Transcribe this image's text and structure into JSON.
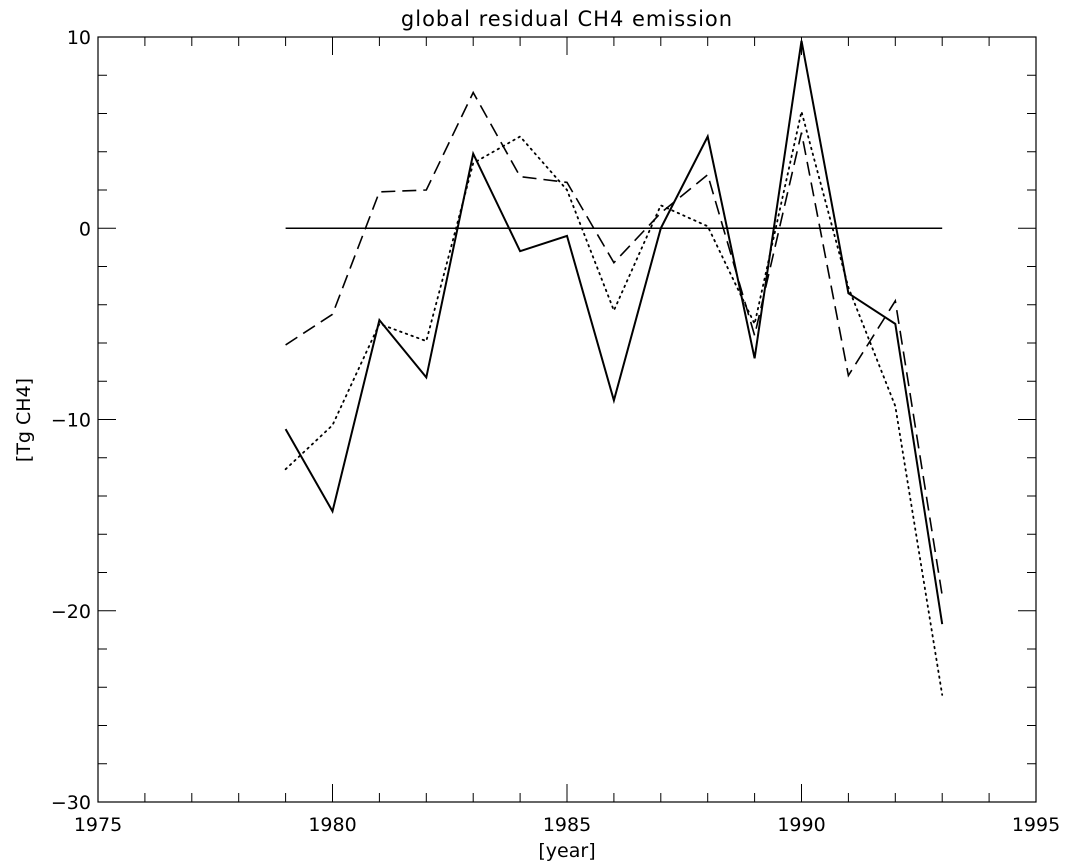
{
  "chart_data": {
    "type": "line",
    "title": "global residual CH4 emission",
    "xlabel": "[year]",
    "ylabel": "[Tg CH4]",
    "xlim": [
      1975,
      1995
    ],
    "ylim": [
      -30,
      10
    ],
    "x_ticks": [
      1975,
      1980,
      1985,
      1990,
      1995
    ],
    "y_ticks": [
      -30,
      -20,
      -10,
      0,
      10
    ],
    "x_tick_labels": [
      "1975",
      "1980",
      "1985",
      "1990",
      "1995"
    ],
    "y_tick_labels": [
      "−30",
      "−20",
      "−10",
      "0",
      "10"
    ],
    "x": [
      1979,
      1980,
      1981,
      1982,
      1983,
      1984,
      1985,
      1986,
      1987,
      1988,
      1989,
      1990,
      1991,
      1992,
      1993
    ],
    "series": [
      {
        "style": "solid",
        "values": [
          -10.5,
          -14.8,
          -4.8,
          -7.8,
          3.9,
          -1.2,
          -0.4,
          -9.0,
          0.0,
          4.8,
          -6.8,
          9.8,
          -3.4,
          -5.0,
          -20.7
        ]
      },
      {
        "style": "dashed",
        "values": [
          -6.1,
          -4.5,
          1.9,
          2.0,
          7.1,
          2.7,
          2.4,
          -1.8,
          0.8,
          2.8,
          -5.6,
          5.0,
          -7.7,
          -3.8,
          -19.2
        ]
      },
      {
        "style": "dotted",
        "values": [
          -12.6,
          -10.3,
          -5.0,
          -5.9,
          3.4,
          4.8,
          2.0,
          -4.3,
          1.2,
          0.1,
          -5.0,
          6.1,
          -3.1,
          -9.3,
          -24.4
        ]
      }
    ],
    "reference_line": {
      "y": 0,
      "x_from": 1979,
      "x_to": 1993,
      "style": "solid"
    },
    "grid": false,
    "legend": "none"
  }
}
